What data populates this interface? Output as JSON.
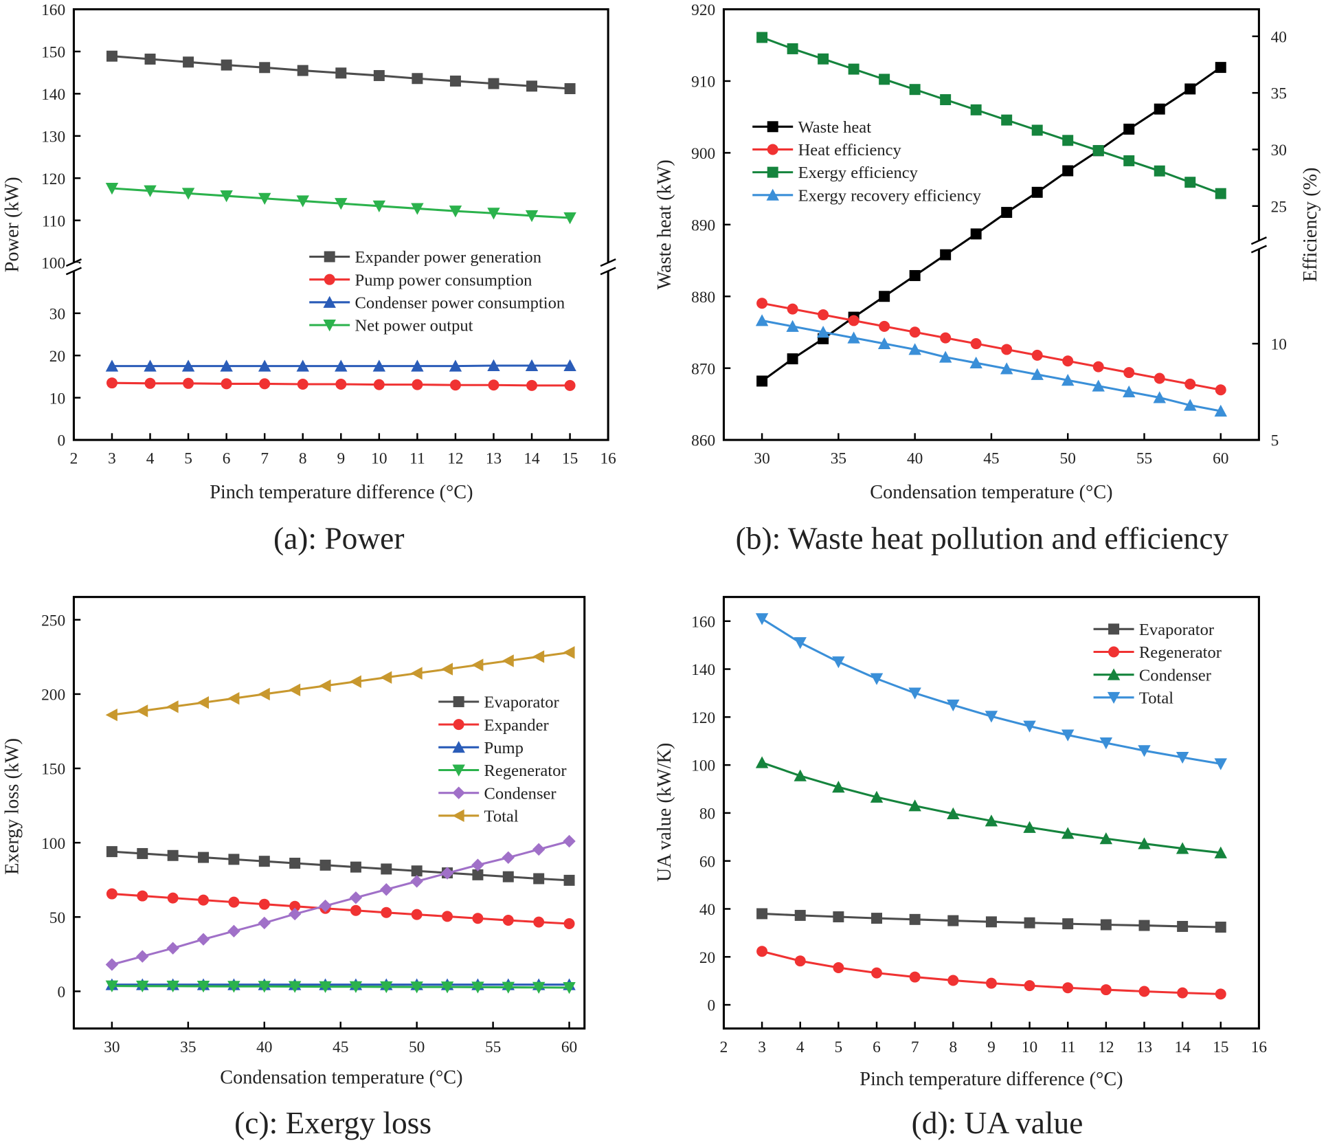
{
  "chart_data": [
    {
      "id": "a",
      "type": "line",
      "title": "(a): Power",
      "xlabel": "Pinch temperature difference (°C)",
      "ylabel": "Power (kW)",
      "xlim": [
        2,
        16
      ],
      "xticks": [
        2,
        3,
        4,
        5,
        6,
        7,
        8,
        9,
        10,
        11,
        12,
        13,
        14,
        15,
        16
      ],
      "ylim": [
        0,
        160
      ],
      "y_break": [
        41,
        100
      ],
      "yticks": [
        0,
        10,
        20,
        30,
        100,
        110,
        120,
        130,
        140,
        150,
        160
      ],
      "legend": "center-right",
      "x": [
        3,
        4,
        5,
        6,
        7,
        8,
        9,
        10,
        11,
        12,
        13,
        14,
        15
      ],
      "series": [
        {
          "name": "Expander power generation",
          "color": "#4d4d4d",
          "marker": "square",
          "values": [
            148.9,
            148.2,
            147.5,
            146.8,
            146.2,
            145.5,
            144.9,
            144.3,
            143.6,
            143.0,
            142.4,
            141.8,
            141.2
          ]
        },
        {
          "name": "Pump power consumption",
          "color": "#f03232",
          "marker": "circle",
          "values": [
            13.5,
            13.4,
            13.4,
            13.3,
            13.3,
            13.2,
            13.2,
            13.1,
            13.1,
            13.0,
            13.0,
            12.9,
            12.9
          ]
        },
        {
          "name": "Condenser power consumption",
          "color": "#2a5cb8",
          "marker": "triangle-up",
          "values": [
            17.5,
            17.5,
            17.5,
            17.5,
            17.5,
            17.5,
            17.5,
            17.5,
            17.5,
            17.5,
            17.6,
            17.6,
            17.6
          ]
        },
        {
          "name": "Net power output",
          "color": "#2bb24c",
          "marker": "triangle-down",
          "values": [
            117.6,
            117.0,
            116.4,
            115.8,
            115.2,
            114.6,
            114.0,
            113.4,
            112.8,
            112.2,
            111.7,
            111.1,
            110.6
          ]
        }
      ]
    },
    {
      "id": "b",
      "type": "line",
      "title": "(b): Waste heat pollution and efficiency",
      "xlabel": "Condensation temperature (°C)",
      "ylabel": "Waste heat (kW)",
      "y2label": "Efficiency (%)",
      "xlim": [
        27.5,
        62.5
      ],
      "xticks": [
        30,
        35,
        40,
        45,
        50,
        55,
        60
      ],
      "ylim": [
        860,
        920
      ],
      "yticks": [
        860,
        870,
        880,
        890,
        900,
        910,
        920
      ],
      "y2lim": [
        5,
        42.5
      ],
      "y2_break": [
        15,
        21.6
      ],
      "y2ticks": [
        5,
        10,
        25,
        30,
        35,
        40
      ],
      "legend": "upper-left",
      "x": [
        30,
        32,
        34,
        36,
        38,
        40,
        42,
        44,
        46,
        48,
        50,
        52,
        54,
        56,
        58,
        60
      ],
      "series": [
        {
          "name": "Waste heat",
          "axis": "left",
          "color": "#000000",
          "marker": "square",
          "values": [
            868.2,
            871.3,
            874.1,
            877.1,
            880.0,
            882.9,
            885.8,
            888.7,
            891.7,
            894.5,
            897.5,
            900.3,
            903.3,
            906.1,
            908.9,
            911.9
          ]
        },
        {
          "name": "Heat efficiency",
          "axis": "right",
          "color": "#f03232",
          "marker": "circle",
          "values": [
            12.1,
            11.8,
            11.5,
            11.2,
            10.9,
            10.6,
            10.3,
            10.0,
            9.7,
            9.4,
            9.1,
            8.8,
            8.5,
            8.2,
            7.9,
            7.6
          ]
        },
        {
          "name": "Exergy efficiency",
          "axis": "right",
          "color": "#15843d",
          "marker": "square",
          "values": [
            39.9,
            38.9,
            38.0,
            37.1,
            36.2,
            35.3,
            34.4,
            33.5,
            32.6,
            31.7,
            30.8,
            29.9,
            29.0,
            28.1,
            27.1,
            26.1
          ]
        },
        {
          "name": "Exergy recovery efficiency",
          "axis": "right",
          "color": "#3a8fd8",
          "marker": "triangle-up",
          "values": [
            11.2,
            10.9,
            10.6,
            10.3,
            10.0,
            9.7,
            9.3,
            9.0,
            8.7,
            8.4,
            8.1,
            7.8,
            7.5,
            7.2,
            6.8,
            6.5
          ]
        }
      ]
    },
    {
      "id": "c",
      "type": "line",
      "title": "(c): Exergy loss",
      "xlabel": "Condensation temperature (°C)",
      "ylabel": "Exergy loss (kW)",
      "xlim": [
        27.5,
        61
      ],
      "xticks": [
        30,
        35,
        40,
        45,
        50,
        55,
        60
      ],
      "ylim": [
        -25,
        265
      ],
      "yticks": [
        0,
        50,
        100,
        150,
        200,
        250
      ],
      "legend": "center-right",
      "x": [
        30,
        32,
        34,
        36,
        38,
        40,
        42,
        44,
        46,
        48,
        50,
        52,
        54,
        56,
        58,
        60
      ],
      "series": [
        {
          "name": "Evaporator",
          "color": "#4d4d4d",
          "marker": "square",
          "values": [
            94,
            92.7,
            91.4,
            90.1,
            88.8,
            87.5,
            86.2,
            84.9,
            83.6,
            82.3,
            81,
            79.7,
            78.4,
            77.1,
            75.8,
            74.7
          ]
        },
        {
          "name": "Expander",
          "color": "#f03232",
          "marker": "circle",
          "values": [
            65.6,
            64.2,
            62.8,
            61.4,
            60,
            58.6,
            57.2,
            55.8,
            54.4,
            53,
            51.7,
            50.4,
            49.1,
            47.8,
            46.6,
            45.5
          ]
        },
        {
          "name": "Pump",
          "color": "#2a5cb8",
          "marker": "triangle-up",
          "values": [
            4.5,
            4.5,
            4.5,
            4.5,
            4.5,
            4.5,
            4.5,
            4.5,
            4.5,
            4.5,
            4.5,
            4.5,
            4.5,
            4.5,
            4.5,
            4.5
          ]
        },
        {
          "name": "Regenerator",
          "color": "#2bb24c",
          "marker": "triangle-down",
          "values": [
            3.6,
            3.5,
            3.5,
            3.4,
            3.3,
            3.3,
            3.2,
            3.1,
            3.1,
            3.0,
            2.9,
            2.9,
            2.8,
            2.7,
            2.6,
            2.5
          ]
        },
        {
          "name": "Condenser",
          "color": "#a070c8",
          "marker": "diamond",
          "values": [
            18,
            23.5,
            29,
            35,
            40.5,
            46,
            52,
            57.5,
            63,
            68.5,
            74,
            79.5,
            85,
            90,
            95.5,
            101
          ]
        },
        {
          "name": "Total",
          "color": "#c8982e",
          "marker": "triangle-left",
          "values": [
            186,
            188.7,
            191.5,
            194.3,
            197.1,
            200,
            202.8,
            205.6,
            208.4,
            211.2,
            214,
            216.8,
            219.6,
            222.4,
            225.2,
            228
          ]
        }
      ]
    },
    {
      "id": "d",
      "type": "line",
      "title": "(d): UA value",
      "xlabel": "Pinch temperature difference (°C)",
      "ylabel": "UA value (kW/K)",
      "xlim": [
        2,
        16
      ],
      "xticks": [
        2,
        3,
        4,
        5,
        6,
        7,
        8,
        9,
        10,
        11,
        12,
        13,
        14,
        15,
        16
      ],
      "ylim": [
        -10,
        170
      ],
      "yticks": [
        0,
        20,
        40,
        60,
        80,
        100,
        120,
        140,
        160
      ],
      "legend": "upper-right",
      "x": [
        3,
        4,
        5,
        6,
        7,
        8,
        9,
        10,
        11,
        12,
        13,
        14,
        15
      ],
      "series": [
        {
          "name": "Evaporator",
          "color": "#4d4d4d",
          "marker": "square",
          "values": [
            38,
            37.3,
            36.7,
            36.1,
            35.6,
            35.1,
            34.6,
            34.2,
            33.8,
            33.4,
            33.1,
            32.7,
            32.4
          ]
        },
        {
          "name": "Regenerator",
          "color": "#f03232",
          "marker": "circle",
          "values": [
            22.3,
            18.3,
            15.5,
            13.3,
            11.6,
            10.2,
            9,
            8,
            7.1,
            6.3,
            5.6,
            5,
            4.5
          ]
        },
        {
          "name": "Condenser",
          "color": "#15843d",
          "marker": "triangle-up",
          "values": [
            101,
            95.5,
            90.8,
            86.6,
            83,
            79.7,
            76.7,
            74,
            71.5,
            69.3,
            67.2,
            65.2,
            63.4
          ]
        },
        {
          "name": "Total",
          "color": "#3a8fd8",
          "marker": "triangle-down",
          "values": [
            161,
            151,
            143,
            136,
            130,
            125,
            120.3,
            116.2,
            112.5,
            109.2,
            106,
            103.2,
            100.5
          ]
        }
      ]
    }
  ]
}
